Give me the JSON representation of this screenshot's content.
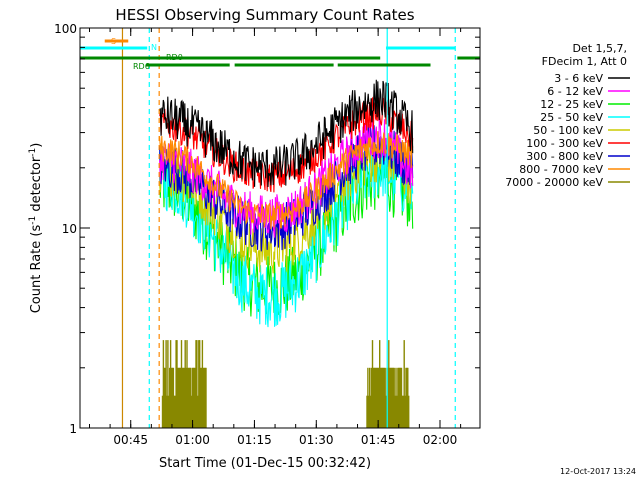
{
  "chart_data": {
    "type": "line",
    "title": "HESSI Observing Summary Count Rates",
    "xlabel": "Start Time (01-Dec-15 00:32:42)",
    "ylabel_main": "Count Rate (s",
    "ylabel_sup1": "-1",
    "ylabel_mid": " detector",
    "ylabel_sup2": "-1",
    "ylabel_end": ")",
    "y_scale": "log",
    "ylim": [
      1,
      100
    ],
    "xlim_minutes": [
      0,
      97
    ],
    "x_tick_labels": [
      {
        "label": "00:45",
        "minutes": 12.3
      },
      {
        "label": "01:00",
        "minutes": 27.3
      },
      {
        "label": "01:15",
        "minutes": 42.3
      },
      {
        "label": "01:30",
        "minutes": 57.3
      },
      {
        "label": "01:45",
        "minutes": 72.3
      },
      {
        "label": "02:00",
        "minutes": 87.3
      }
    ],
    "y_tick_labels": [
      {
        "label": "100",
        "value": 100
      },
      {
        "label": "10",
        "value": 10
      },
      {
        "label": "1",
        "value": 1
      }
    ],
    "legend_header": [
      "Det 1,5,7,",
      "FDecim 1, Att 0"
    ],
    "series": [
      {
        "name": "3 - 6 keV",
        "color": "#000000",
        "peak": 36,
        "valley": 20,
        "end_peak": 44,
        "end": 30,
        "noise": 0.11
      },
      {
        "name": "6 - 12 keV",
        "color": "#ff00ff",
        "peak": 22,
        "valley": 11.5,
        "end_peak": 29,
        "end": 18,
        "noise": 0.11
      },
      {
        "name": "12 - 25 keV",
        "color": "#00ee00",
        "peak": 16.5,
        "valley": 5,
        "end_peak": 18,
        "end": 14,
        "noise": 0.17
      },
      {
        "name": "25 - 50 keV",
        "color": "#00ffff",
        "peak": 17.5,
        "valley": 4.6,
        "end_peak": 20,
        "end": 15,
        "noise": 0.16
      },
      {
        "name": "50 - 100 keV",
        "color": "#cccc00",
        "peak": 20,
        "valley": 7.8,
        "end_peak": 23,
        "end": 17,
        "noise": 0.13
      },
      {
        "name": "100 - 300 keV",
        "color": "#ff0000",
        "peak": 33,
        "valley": 18,
        "end_peak": 38,
        "end": 28,
        "noise": 0.08
      },
      {
        "name": "300 - 800 keV",
        "color": "#0000cc",
        "peak": 20.5,
        "valley": 10,
        "end_peak": 26,
        "end": 19,
        "noise": 0.12
      },
      {
        "name": "800 - 7000 keV",
        "color": "#ff8800",
        "peak": 25,
        "valley": 11.5,
        "end_peak": 27,
        "end": 23,
        "noise": 0.07
      },
      {
        "name": "7000 - 20000 keV",
        "color": "#888800",
        "peak": 2,
        "valley": 1.7,
        "end_peak": 2,
        "end": 2,
        "noise": 0.0
      }
    ],
    "data_window_minutes": [
      19.3,
      80.8
    ],
    "olive_bursts_minutes": [
      [
        20.0,
        30.6
      ],
      [
        69.6,
        79.8
      ]
    ],
    "flag_bars": {
      "cyan_top": {
        "color": "#00ffff",
        "segments": [
          [
            0,
            16.3
          ],
          [
            74.2,
            91.0
          ]
        ]
      },
      "green_upper": {
        "color": "#008800",
        "segments": [
          [
            0,
            72.8
          ],
          [
            91.5,
            97
          ]
        ]
      },
      "green_lower": {
        "color": "#008800",
        "segments": [
          [
            16.0,
            36.3
          ],
          [
            37.5,
            61.5
          ],
          [
            62.5,
            85.0
          ]
        ]
      },
      "orange_s": {
        "color": "#ff8800",
        "segments": [
          [
            6.0,
            11.7
          ]
        ]
      }
    },
    "flag_labels": [
      {
        "text": "S",
        "color": "#ff8800"
      },
      {
        "text": "N",
        "color": "#00ffff"
      },
      {
        "text": "RD0",
        "color": "#008800"
      },
      {
        "text": "RD6",
        "color": "#008800"
      }
    ],
    "vertical_lines": [
      {
        "minutes": 10.3,
        "color": "#cc8800",
        "style": "solid"
      },
      {
        "minutes": 16.8,
        "color": "#00ffff",
        "style": "dashed"
      },
      {
        "minutes": 19.2,
        "color": "#ff8800",
        "style": "dashed"
      },
      {
        "minutes": 74.5,
        "color": "#00ffff",
        "style": "solid"
      },
      {
        "minutes": 91.0,
        "color": "#00ffff",
        "style": "dashed"
      }
    ],
    "grid": false
  },
  "footer": {
    "timestamp": "12-Oct-2017 13:24"
  }
}
